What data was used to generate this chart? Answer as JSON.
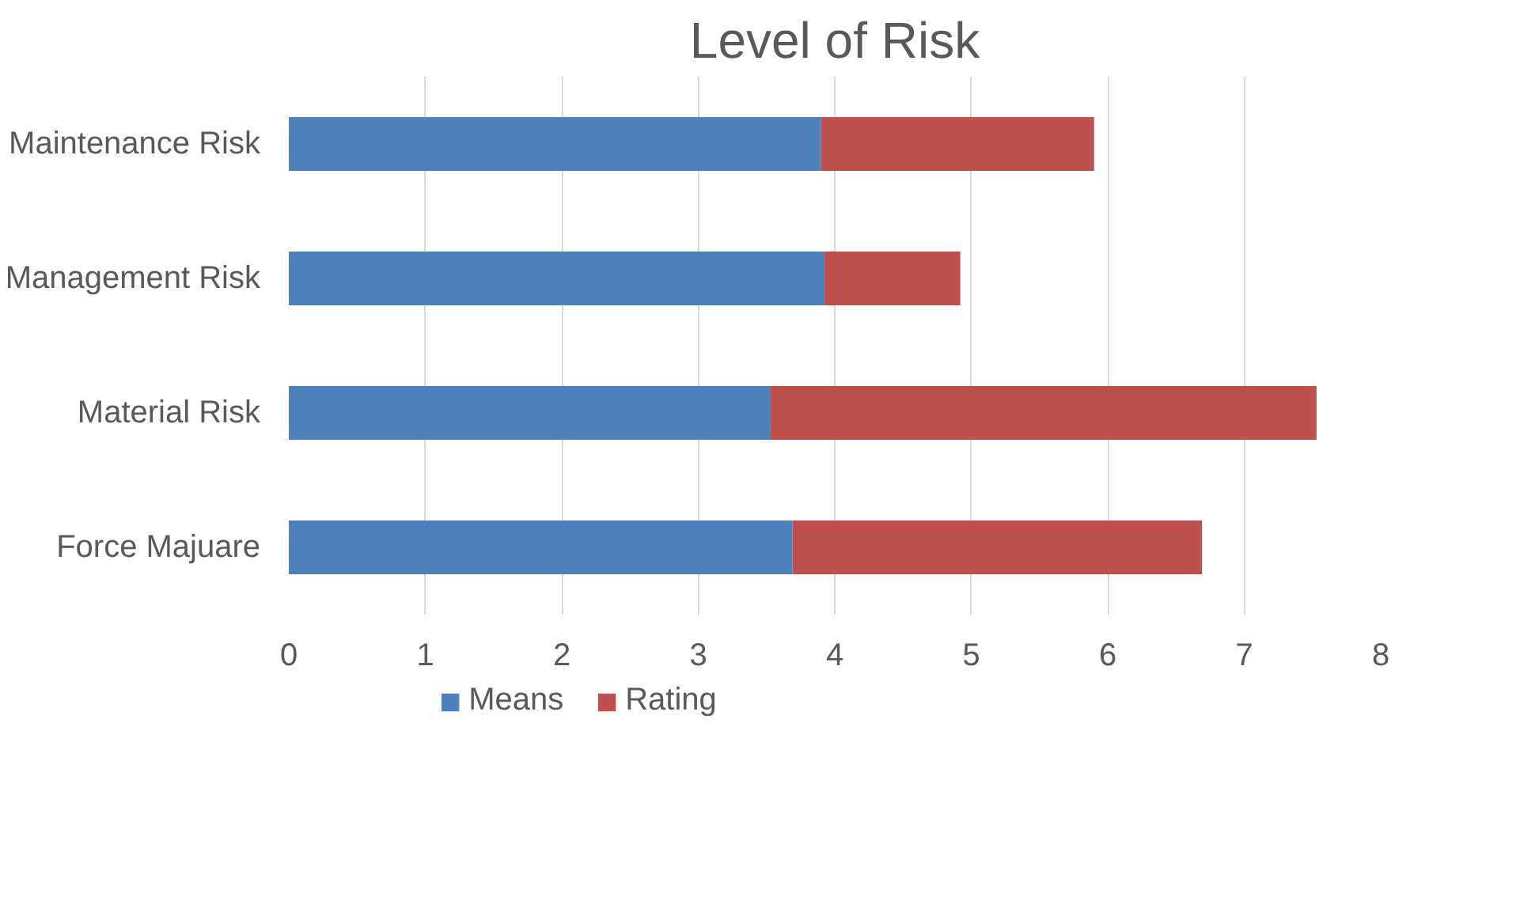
{
  "chart_data": {
    "type": "bar",
    "title": "Level of Risk",
    "orientation": "horizontal",
    "stacked": true,
    "categories": [
      "Maintenance Risk",
      "Management Risk",
      "Material Risk",
      "Force Majuare"
    ],
    "series": [
      {
        "name": "Means",
        "color": "#4f81bd",
        "values": [
          3.9,
          3.92,
          3.53,
          3.69
        ]
      },
      {
        "name": "Rating",
        "color": "#c0504d",
        "values": [
          2.0,
          1.0,
          4.0,
          3.0
        ]
      }
    ],
    "xlim": [
      0,
      8
    ],
    "xticks": [
      0,
      1,
      2,
      3,
      4,
      5,
      6,
      7,
      8
    ],
    "grid": "x",
    "legend": "bottom"
  }
}
